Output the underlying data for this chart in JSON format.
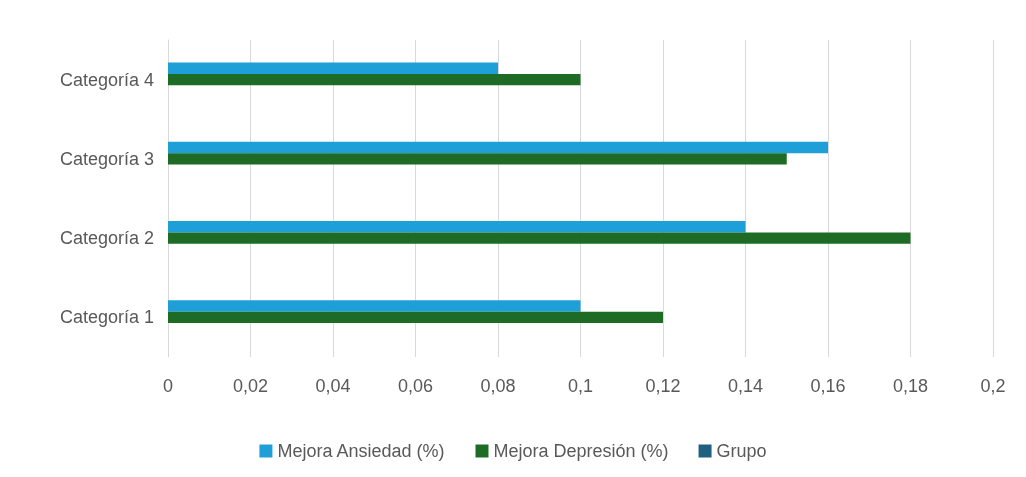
{
  "chart_data": {
    "type": "bar",
    "orientation": "horizontal",
    "categories": [
      "Categoría 4",
      "Categoría 3",
      "Categoría 2",
      "Categoría 1"
    ],
    "series": [
      {
        "name": "Mejora Ansiedad (%)",
        "color": "#1e9fd8",
        "values": [
          0.08,
          0.16,
          0.14,
          0.1
        ]
      },
      {
        "name": "Mejora Depresión (%)",
        "color": "#1e6b26",
        "values": [
          0.1,
          0.15,
          0.18,
          0.12
        ]
      },
      {
        "name": "Grupo",
        "color": "#1f5f80",
        "values": [
          null,
          null,
          null,
          null
        ]
      }
    ],
    "xlim": [
      0,
      0.2
    ],
    "xticks": [
      {
        "value": 0,
        "label": "0"
      },
      {
        "value": 0.02,
        "label": "0,02"
      },
      {
        "value": 0.04,
        "label": "0,04"
      },
      {
        "value": 0.06,
        "label": "0,06"
      },
      {
        "value": 0.08,
        "label": "0,08"
      },
      {
        "value": 0.1,
        "label": "0,1"
      },
      {
        "value": 0.12,
        "label": "0,12"
      },
      {
        "value": 0.14,
        "label": "0,14"
      },
      {
        "value": 0.16,
        "label": "0,16"
      },
      {
        "value": 0.18,
        "label": "0,18"
      },
      {
        "value": 0.2,
        "label": "0,2"
      }
    ],
    "grid": "x",
    "legend": "bottom"
  }
}
